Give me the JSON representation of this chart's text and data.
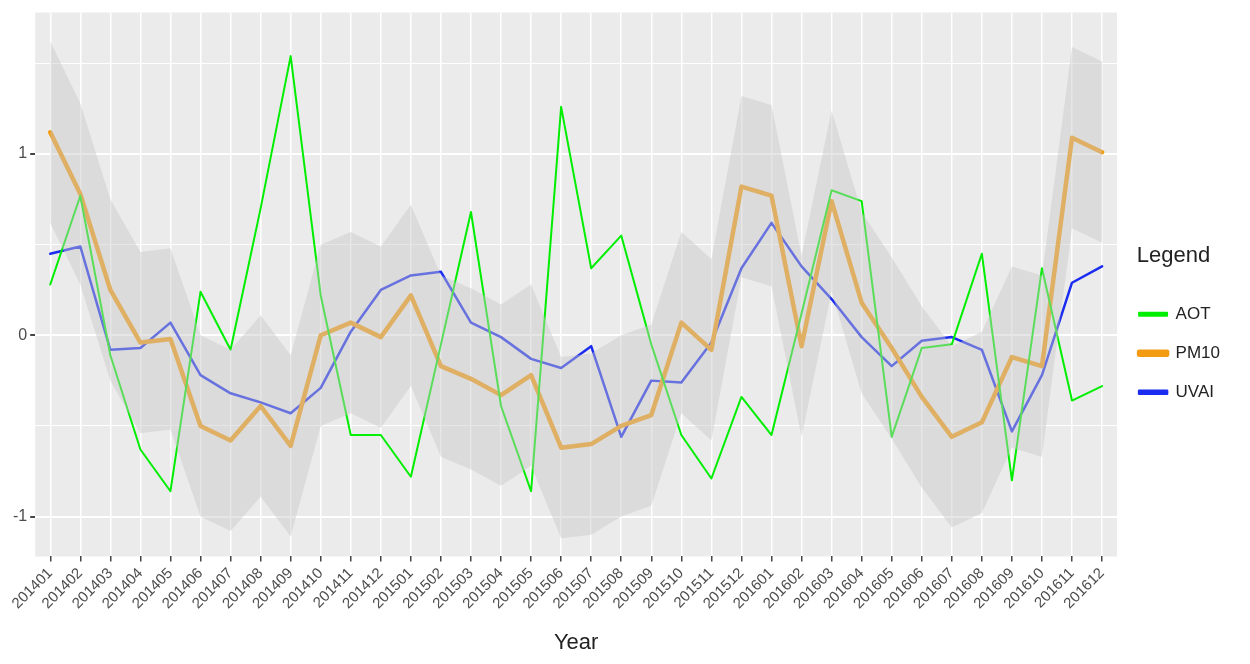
{
  "chart_data": {
    "type": "line",
    "xlabel": "Year",
    "legend_title": "Legend",
    "legend": "right",
    "grid": true,
    "categories": [
      "201401",
      "201402",
      "201403",
      "201404",
      "201405",
      "201406",
      "201407",
      "201408",
      "201409",
      "201410",
      "201411",
      "201412",
      "201501",
      "201502",
      "201503",
      "201504",
      "201505",
      "201506",
      "201507",
      "201508",
      "201509",
      "201510",
      "201511",
      "201512",
      "201601",
      "201602",
      "201603",
      "201604",
      "201605",
      "201606",
      "201607",
      "201608",
      "201609",
      "201610",
      "201611",
      "201612"
    ],
    "ylim": [
      -1.22,
      1.78
    ],
    "yticks": [
      {
        "value": -1,
        "label": "-1"
      },
      {
        "value": -0.5,
        "label": null
      },
      {
        "value": 0,
        "label": "0"
      },
      {
        "value": 0.5,
        "label": null
      },
      {
        "value": 1,
        "label": "1"
      },
      {
        "value": 1.5,
        "label": null
      }
    ],
    "series": [
      {
        "name": "AOT",
        "color": "#00ee00",
        "values": [
          0.28,
          0.77,
          -0.11,
          -0.63,
          -0.86,
          0.24,
          -0.08,
          0.7,
          1.54,
          0.22,
          -0.55,
          -0.55,
          -0.78,
          -0.05,
          0.68,
          -0.39,
          -0.86,
          1.26,
          0.37,
          0.55,
          -0.05,
          -0.55,
          -0.79,
          -0.34,
          -0.55,
          0.12,
          0.8,
          0.74,
          -0.56,
          -0.07,
          -0.05,
          0.45,
          -0.8,
          0.37,
          -0.36,
          -0.28
        ]
      },
      {
        "name": "PM10",
        "color": "#f39c12",
        "values": [
          1.12,
          0.78,
          0.25,
          -0.04,
          -0.02,
          -0.5,
          -0.58,
          -0.39,
          -0.61,
          0.0,
          0.07,
          -0.01,
          0.22,
          -0.17,
          -0.24,
          -0.33,
          -0.22,
          -0.62,
          -0.6,
          -0.5,
          -0.44,
          0.07,
          -0.08,
          0.82,
          0.77,
          -0.06,
          0.74,
          0.18,
          -0.07,
          -0.34,
          -0.56,
          -0.48,
          -0.12,
          -0.17,
          1.09,
          1.01
        ],
        "lower": [
          0.62,
          0.28,
          -0.25,
          -0.54,
          -0.52,
          -1.0,
          -1.08,
          -0.89,
          -1.11,
          -0.5,
          -0.43,
          -0.51,
          -0.28,
          -0.67,
          -0.74,
          -0.83,
          -0.72,
          -1.12,
          -1.1,
          -1.0,
          -0.94,
          -0.43,
          -0.58,
          0.32,
          0.27,
          -0.56,
          0.24,
          -0.32,
          -0.57,
          -0.84,
          -1.06,
          -0.98,
          -0.62,
          -0.67,
          0.59,
          0.51
        ],
        "upper": [
          1.62,
          1.28,
          0.75,
          0.46,
          0.48,
          0.0,
          -0.08,
          0.11,
          -0.11,
          0.5,
          0.57,
          0.49,
          0.72,
          0.33,
          0.26,
          0.17,
          0.28,
          -0.12,
          -0.1,
          0.0,
          0.06,
          0.57,
          0.42,
          1.32,
          1.27,
          0.44,
          1.24,
          0.68,
          0.43,
          0.16,
          -0.06,
          0.02,
          0.38,
          0.33,
          1.59,
          1.51
        ]
      },
      {
        "name": "UVAI",
        "color": "#1a2cf0",
        "values": [
          0.45,
          0.49,
          -0.08,
          -0.07,
          0.07,
          -0.22,
          -0.32,
          -0.37,
          -0.43,
          -0.29,
          0.02,
          0.25,
          0.33,
          0.35,
          0.07,
          -0.01,
          -0.13,
          -0.18,
          -0.06,
          -0.56,
          -0.25,
          -0.26,
          -0.04,
          0.37,
          0.62,
          0.38,
          0.2,
          -0.01,
          -0.17,
          -0.03,
          -0.01,
          -0.08,
          -0.53,
          -0.22,
          0.29,
          0.38
        ]
      }
    ]
  }
}
